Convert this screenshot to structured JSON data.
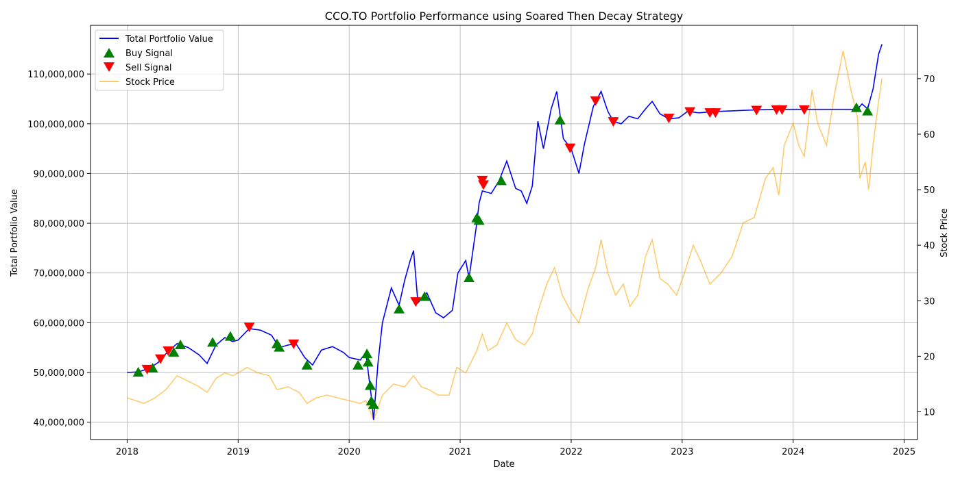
{
  "chart_data": {
    "type": "line",
    "title": "CCO.TO Portfolio Performance using Soared Then Decay Strategy",
    "xlabel": "Date",
    "ylabel_left": "Total Portfolio Value",
    "ylabel_right": "Stock Price",
    "x_ticks": [
      "2018",
      "2019",
      "2020",
      "2021",
      "2022",
      "2023",
      "2024",
      "2025"
    ],
    "xlim": [
      2017.67,
      2025.12
    ],
    "y_left_ticks": [
      "40,000,000",
      "50,000,000",
      "60,000,000",
      "70,000,000",
      "80,000,000",
      "90,000,000",
      "100,000,000",
      "110,000,000"
    ],
    "y_left_tick_values": [
      40000000,
      50000000,
      60000000,
      70000000,
      80000000,
      90000000,
      100000000,
      110000000
    ],
    "ylim_left": [
      36500000,
      119800000
    ],
    "y_right_ticks": [
      "10",
      "20",
      "30",
      "40",
      "50",
      "60",
      "70"
    ],
    "y_right_tick_values": [
      10,
      20,
      30,
      40,
      50,
      60,
      70
    ],
    "ylim_right": [
      5,
      79.6
    ],
    "grid": true,
    "legend_position": "top-left",
    "legend": [
      "Total Portfolio Value",
      "Buy Signal",
      "Sell Signal",
      "Stock Price"
    ],
    "colors": {
      "portfolio": "#0000ff",
      "buy": "#008000",
      "sell": "#ff0000",
      "stock": "#ffa500"
    },
    "series": [
      {
        "name": "Total Portfolio Value",
        "axis": "left",
        "points": [
          [
            2018.0,
            50000000
          ],
          [
            2018.1,
            50100000
          ],
          [
            2018.2,
            50800000
          ],
          [
            2018.28,
            52000000
          ],
          [
            2018.35,
            53800000
          ],
          [
            2018.45,
            55800000
          ],
          [
            2018.55,
            55000000
          ],
          [
            2018.65,
            53500000
          ],
          [
            2018.72,
            51800000
          ],
          [
            2018.8,
            55500000
          ],
          [
            2018.88,
            57000000
          ],
          [
            2018.95,
            56200000
          ],
          [
            2019.0,
            56500000
          ],
          [
            2019.1,
            58800000
          ],
          [
            2019.2,
            58500000
          ],
          [
            2019.3,
            57500000
          ],
          [
            2019.37,
            55000000
          ],
          [
            2019.45,
            55500000
          ],
          [
            2019.52,
            55800000
          ],
          [
            2019.6,
            53000000
          ],
          [
            2019.67,
            51500000
          ],
          [
            2019.75,
            54500000
          ],
          [
            2019.85,
            55200000
          ],
          [
            2019.95,
            54000000
          ],
          [
            2020.0,
            53000000
          ],
          [
            2020.1,
            52500000
          ],
          [
            2020.15,
            54000000
          ],
          [
            2020.2,
            45000000
          ],
          [
            2020.22,
            40500000
          ],
          [
            2020.26,
            52000000
          ],
          [
            2020.3,
            60000000
          ],
          [
            2020.38,
            67000000
          ],
          [
            2020.45,
            63500000
          ],
          [
            2020.5,
            68500000
          ],
          [
            2020.55,
            72500000
          ],
          [
            2020.58,
            74500000
          ],
          [
            2020.62,
            64000000
          ],
          [
            2020.7,
            66000000
          ],
          [
            2020.78,
            62000000
          ],
          [
            2020.85,
            61000000
          ],
          [
            2020.93,
            62500000
          ],
          [
            2020.98,
            70000000
          ],
          [
            2021.05,
            72500000
          ],
          [
            2021.08,
            69000000
          ],
          [
            2021.15,
            80000000
          ],
          [
            2021.17,
            84000000
          ],
          [
            2021.2,
            86500000
          ],
          [
            2021.28,
            86000000
          ],
          [
            2021.35,
            88500000
          ],
          [
            2021.42,
            92500000
          ],
          [
            2021.5,
            87000000
          ],
          [
            2021.55,
            86500000
          ],
          [
            2021.6,
            84000000
          ],
          [
            2021.65,
            87500000
          ],
          [
            2021.7,
            100500000
          ],
          [
            2021.75,
            95000000
          ],
          [
            2021.82,
            103000000
          ],
          [
            2021.87,
            106500000
          ],
          [
            2021.93,
            97000000
          ],
          [
            2022.0,
            95000000
          ],
          [
            2022.07,
            90000000
          ],
          [
            2022.12,
            96000000
          ],
          [
            2022.2,
            103500000
          ],
          [
            2022.27,
            106500000
          ],
          [
            2022.33,
            102500000
          ],
          [
            2022.38,
            100500000
          ],
          [
            2022.45,
            100000000
          ],
          [
            2022.52,
            101500000
          ],
          [
            2022.6,
            101000000
          ],
          [
            2022.67,
            103000000
          ],
          [
            2022.73,
            104500000
          ],
          [
            2022.8,
            102000000
          ],
          [
            2022.88,
            101000000
          ],
          [
            2022.97,
            101200000
          ],
          [
            2023.05,
            102500000
          ],
          [
            2023.15,
            102200000
          ],
          [
            2023.25,
            102400000
          ],
          [
            2023.35,
            102500000
          ],
          [
            2023.45,
            102600000
          ],
          [
            2023.55,
            102700000
          ],
          [
            2023.67,
            102800000
          ],
          [
            2023.82,
            102900000
          ],
          [
            2023.92,
            102900000
          ],
          [
            2024.1,
            102900000
          ],
          [
            2024.3,
            102900000
          ],
          [
            2024.5,
            102900000
          ],
          [
            2024.58,
            102900000
          ],
          [
            2024.62,
            104000000
          ],
          [
            2024.67,
            103000000
          ],
          [
            2024.72,
            107000000
          ],
          [
            2024.77,
            114000000
          ],
          [
            2024.8,
            116000000
          ]
        ]
      },
      {
        "name": "Stock Price",
        "axis": "right",
        "points": [
          [
            2018.0,
            12.5
          ],
          [
            2018.08,
            12
          ],
          [
            2018.15,
            11.5
          ],
          [
            2018.25,
            12.5
          ],
          [
            2018.35,
            14
          ],
          [
            2018.45,
            16.5
          ],
          [
            2018.55,
            15.5
          ],
          [
            2018.65,
            14.5
          ],
          [
            2018.72,
            13.5
          ],
          [
            2018.8,
            16
          ],
          [
            2018.88,
            17
          ],
          [
            2018.95,
            16.5
          ],
          [
            2019.0,
            17
          ],
          [
            2019.08,
            18
          ],
          [
            2019.18,
            17
          ],
          [
            2019.28,
            16.5
          ],
          [
            2019.35,
            14
          ],
          [
            2019.45,
            14.5
          ],
          [
            2019.55,
            13.5
          ],
          [
            2019.62,
            11.5
          ],
          [
            2019.7,
            12.5
          ],
          [
            2019.8,
            13
          ],
          [
            2019.9,
            12.5
          ],
          [
            2020.0,
            12
          ],
          [
            2020.1,
            11.5
          ],
          [
            2020.15,
            12
          ],
          [
            2020.2,
            9.5
          ],
          [
            2020.22,
            8.5
          ],
          [
            2020.3,
            13
          ],
          [
            2020.4,
            15
          ],
          [
            2020.5,
            14.5
          ],
          [
            2020.58,
            16.5
          ],
          [
            2020.65,
            14.5
          ],
          [
            2020.72,
            14
          ],
          [
            2020.8,
            13
          ],
          [
            2020.9,
            13
          ],
          [
            2020.97,
            18
          ],
          [
            2021.05,
            17
          ],
          [
            2021.1,
            19
          ],
          [
            2021.15,
            21
          ],
          [
            2021.2,
            24
          ],
          [
            2021.25,
            21
          ],
          [
            2021.33,
            22
          ],
          [
            2021.42,
            26
          ],
          [
            2021.5,
            23
          ],
          [
            2021.58,
            22
          ],
          [
            2021.65,
            24
          ],
          [
            2021.7,
            28
          ],
          [
            2021.78,
            33
          ],
          [
            2021.85,
            36
          ],
          [
            2021.92,
            31
          ],
          [
            2022.0,
            28
          ],
          [
            2022.07,
            26
          ],
          [
            2022.15,
            32
          ],
          [
            2022.22,
            36
          ],
          [
            2022.27,
            41
          ],
          [
            2022.33,
            35
          ],
          [
            2022.4,
            31
          ],
          [
            2022.47,
            33
          ],
          [
            2022.53,
            29
          ],
          [
            2022.6,
            31
          ],
          [
            2022.67,
            38
          ],
          [
            2022.73,
            41
          ],
          [
            2022.8,
            34
          ],
          [
            2022.87,
            33
          ],
          [
            2022.95,
            31
          ],
          [
            2023.02,
            35
          ],
          [
            2023.1,
            40
          ],
          [
            2023.17,
            37
          ],
          [
            2023.25,
            33
          ],
          [
            2023.35,
            35
          ],
          [
            2023.45,
            38
          ],
          [
            2023.55,
            44
          ],
          [
            2023.65,
            45
          ],
          [
            2023.75,
            52
          ],
          [
            2023.82,
            54
          ],
          [
            2023.87,
            49
          ],
          [
            2023.92,
            58
          ],
          [
            2024.0,
            62
          ],
          [
            2024.05,
            58
          ],
          [
            2024.1,
            56
          ],
          [
            2024.17,
            68
          ],
          [
            2024.22,
            62
          ],
          [
            2024.3,
            58
          ],
          [
            2024.37,
            67
          ],
          [
            2024.45,
            75
          ],
          [
            2024.52,
            68
          ],
          [
            2024.58,
            63
          ],
          [
            2024.6,
            52
          ],
          [
            2024.65,
            55
          ],
          [
            2024.68,
            50
          ],
          [
            2024.72,
            58
          ],
          [
            2024.77,
            66
          ],
          [
            2024.8,
            70
          ]
        ]
      },
      {
        "name": "Buy Signal",
        "axis": "left",
        "marker": "triangle-up",
        "points": [
          [
            2018.1,
            50000000
          ],
          [
            2018.23,
            50800000
          ],
          [
            2018.42,
            54000000
          ],
          [
            2018.48,
            55500000
          ],
          [
            2018.77,
            56000000
          ],
          [
            2018.93,
            57200000
          ],
          [
            2019.35,
            55700000
          ],
          [
            2019.37,
            55000000
          ],
          [
            2019.62,
            51400000
          ],
          [
            2020.08,
            51400000
          ],
          [
            2020.16,
            53700000
          ],
          [
            2020.17,
            52000000
          ],
          [
            2020.19,
            47300000
          ],
          [
            2020.2,
            44200000
          ],
          [
            2020.22,
            43500000
          ],
          [
            2020.45,
            62700000
          ],
          [
            2020.68,
            65200000
          ],
          [
            2021.08,
            69000000
          ],
          [
            2021.15,
            81000000
          ],
          [
            2021.17,
            80500000
          ],
          [
            2021.37,
            88500000
          ],
          [
            2021.9,
            100700000
          ],
          [
            2024.57,
            103200000
          ],
          [
            2024.67,
            102500000
          ]
        ]
      },
      {
        "name": "Sell Signal",
        "axis": "left",
        "marker": "triangle-down",
        "points": [
          [
            2018.18,
            50700000
          ],
          [
            2018.3,
            52800000
          ],
          [
            2018.37,
            54400000
          ],
          [
            2019.1,
            59200000
          ],
          [
            2019.5,
            55800000
          ],
          [
            2020.6,
            64300000
          ],
          [
            2021.2,
            88700000
          ],
          [
            2021.21,
            87800000
          ],
          [
            2021.99,
            95200000
          ],
          [
            2022.22,
            104700000
          ],
          [
            2022.38,
            100500000
          ],
          [
            2022.88,
            101200000
          ],
          [
            2023.07,
            102500000
          ],
          [
            2023.25,
            102300000
          ],
          [
            2023.3,
            102300000
          ],
          [
            2023.67,
            102800000
          ],
          [
            2023.85,
            102900000
          ],
          [
            2023.9,
            102900000
          ],
          [
            2024.1,
            102900000
          ]
        ]
      }
    ]
  }
}
